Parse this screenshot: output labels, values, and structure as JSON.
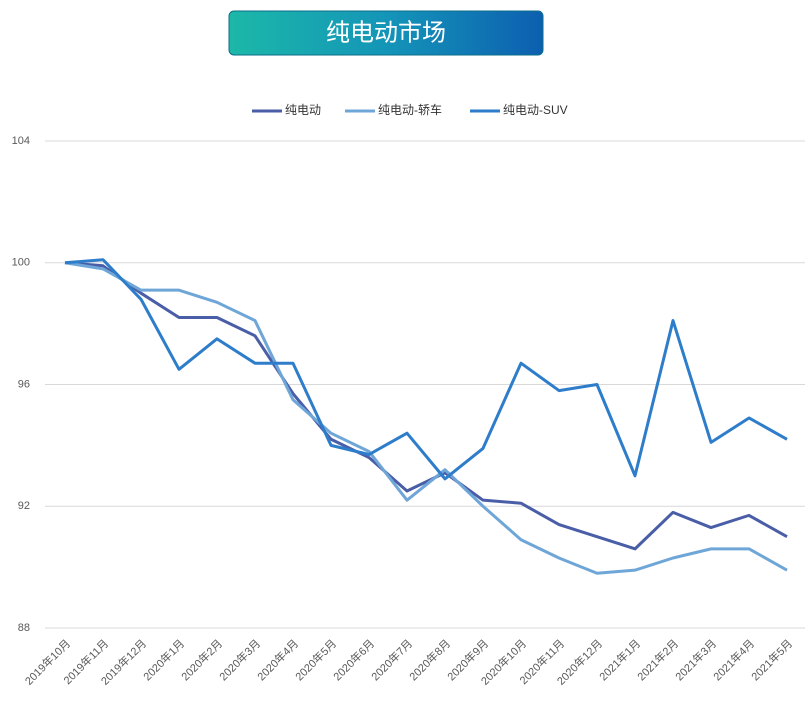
{
  "chart_data": {
    "type": "line",
    "title": "纯电动市场",
    "categories": [
      "2019年10月",
      "2019年11月",
      "2019年12月",
      "2020年1月",
      "2020年2月",
      "2020年3月",
      "2020年4月",
      "2020年5月",
      "2020年6月",
      "2020年7月",
      "2020年8月",
      "2020年9月",
      "2020年10月",
      "2020年11月",
      "2020年12月",
      "2021年1月",
      "2021年2月",
      "2021年3月",
      "2021年4月",
      "2021年5月"
    ],
    "series": [
      {
        "name": "纯电动",
        "color": "#4a5ea8",
        "values": [
          100,
          99.9,
          99.0,
          98.2,
          98.2,
          97.6,
          95.7,
          94.2,
          93.6,
          92.5,
          93.1,
          92.2,
          92.1,
          91.4,
          91.0,
          90.6,
          91.8,
          91.3,
          91.7,
          91.0
        ]
      },
      {
        "name": "纯电动-轿车",
        "color": "#6fa6d8",
        "values": [
          100,
          99.8,
          99.1,
          99.1,
          98.7,
          98.1,
          95.5,
          94.4,
          93.8,
          92.2,
          93.2,
          92.0,
          90.9,
          90.3,
          89.8,
          89.9,
          90.3,
          90.6,
          90.6,
          89.9
        ]
      },
      {
        "name": "纯电动-SUV",
        "color": "#2e7dcb",
        "values": [
          100,
          100.1,
          98.8,
          96.5,
          97.5,
          96.7,
          96.7,
          94.0,
          93.7,
          94.4,
          92.9,
          93.9,
          96.7,
          95.8,
          96.0,
          93.0,
          98.1,
          94.1,
          94.9,
          94.2
        ]
      }
    ],
    "ylim": [
      88,
      104
    ],
    "yticks": [
      88,
      92,
      96,
      100,
      104
    ],
    "grid": true,
    "legend": "top"
  }
}
